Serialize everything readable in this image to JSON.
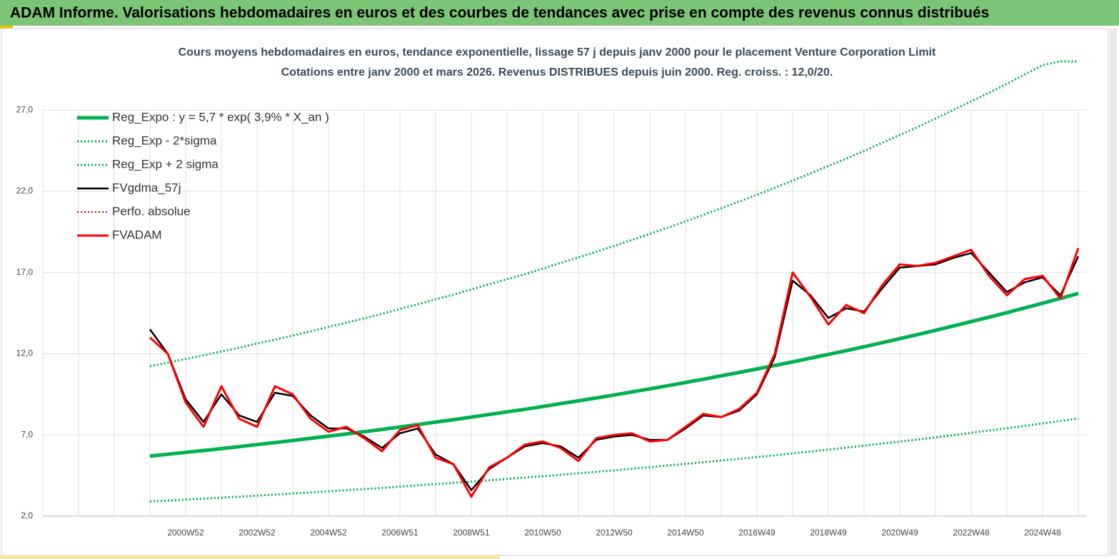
{
  "header": {
    "title": "ADAM Informe. Valorisations hebdomadaires en euros et des courbes de tendances avec prise en compte des revenus connus distribués"
  },
  "chart_data": {
    "type": "line",
    "title": "Cours moyens hebdomadaires en euros, tendance exponentielle, lissage 57 j depuis janv 2000  pour le placement Venture Corporation Limit",
    "subtitle": "Cotations entre janv 2000 et mars 2026. Revenus  DISTRIBUES depuis juin 2000. Reg. croiss. : 12,0/20.",
    "categories": [
      null,
      null,
      null,
      null,
      null,
      null,
      null,
      null,
      "2000W52",
      null,
      null,
      null,
      "2002W52",
      null,
      null,
      null,
      "2004W52",
      null,
      null,
      null,
      "2006W51",
      null,
      null,
      null,
      "2008W51",
      null,
      null,
      null,
      "2010W50",
      null,
      null,
      null,
      "2012W50",
      null,
      null,
      null,
      "2014W50",
      null,
      null,
      null,
      "2016W49",
      null,
      null,
      null,
      "2018W49",
      null,
      null,
      null,
      "2020W49",
      null,
      null,
      null,
      "2022W48",
      null,
      null,
      null,
      "2024W48",
      null,
      null
    ],
    "ylim": [
      2,
      30
    ],
    "yticks": [
      {
        "value": 2,
        "label": "2,0"
      },
      {
        "value": 7,
        "label": "7,0"
      },
      {
        "value": 12,
        "label": "12,0"
      },
      {
        "value": 17,
        "label": "17,0"
      },
      {
        "value": 22,
        "label": "22,0"
      },
      {
        "value": 27,
        "label": "27,0"
      }
    ],
    "grid": true,
    "legend": "upper left",
    "series": [
      {
        "name": "Reg_Expo : y = 5,7 * exp( 3,9% *  X_an )",
        "color": "#00b050",
        "style": "solid",
        "width": 5,
        "values": [
          null,
          null,
          null,
          null,
          null,
          null,
          5.7,
          5.81,
          5.93,
          6.04,
          6.16,
          6.28,
          6.41,
          6.53,
          6.66,
          6.79,
          6.93,
          7.06,
          7.2,
          7.34,
          7.49,
          7.64,
          7.79,
          7.94,
          8.1,
          8.26,
          8.42,
          8.58,
          8.75,
          8.93,
          9.1,
          9.28,
          9.46,
          9.65,
          9.84,
          10.03,
          10.23,
          10.43,
          10.64,
          10.85,
          11.06,
          11.28,
          11.5,
          11.73,
          11.96,
          12.19,
          12.43,
          12.68,
          12.93,
          13.18,
          13.44,
          13.71,
          13.98,
          14.25,
          14.53,
          14.82,
          15.11,
          15.41,
          15.71
        ]
      },
      {
        "name": "Reg_Exp - 2*sigma",
        "color": "#00b050",
        "style": "dotted",
        "width": 3,
        "values": [
          null,
          null,
          null,
          null,
          null,
          null,
          2.91,
          2.96,
          3.02,
          3.08,
          3.14,
          3.2,
          3.27,
          3.33,
          3.4,
          3.46,
          3.53,
          3.6,
          3.67,
          3.74,
          3.82,
          3.9,
          3.97,
          4.05,
          4.13,
          4.21,
          4.29,
          4.38,
          4.46,
          4.55,
          4.64,
          4.73,
          4.82,
          4.92,
          5.02,
          5.12,
          5.22,
          5.32,
          5.43,
          5.53,
          5.64,
          5.75,
          5.87,
          5.98,
          6.1,
          6.22,
          6.34,
          6.47,
          6.59,
          6.72,
          6.85,
          6.99,
          7.13,
          7.27,
          7.41,
          7.56,
          7.71,
          7.86,
          8.01
        ]
      },
      {
        "name": "Reg_Exp + 2 sigma",
        "color": "#00b050",
        "style": "dotted",
        "width": 3,
        "values": [
          null,
          null,
          null,
          null,
          null,
          null,
          11.23,
          11.45,
          11.68,
          11.9,
          12.14,
          12.37,
          12.63,
          12.86,
          13.12,
          13.38,
          13.65,
          13.91,
          14.18,
          14.46,
          14.76,
          15.05,
          15.35,
          15.64,
          15.96,
          16.27,
          16.59,
          16.9,
          17.24,
          17.59,
          17.93,
          18.28,
          18.64,
          19.01,
          19.38,
          19.76,
          20.15,
          20.55,
          20.96,
          21.37,
          21.79,
          22.22,
          22.66,
          23.11,
          23.56,
          24.01,
          24.49,
          24.98,
          25.47,
          25.96,
          26.48,
          27.01,
          27.54,
          28.07,
          28.62,
          29.2,
          29.77,
          30.0,
          30.0
        ]
      },
      {
        "name": "FVgdma_57j",
        "color": "#000000",
        "style": "solid",
        "width": 2.5,
        "values": [
          null,
          null,
          null,
          null,
          null,
          null,
          13.5,
          12.0,
          9.2,
          7.8,
          9.5,
          8.2,
          7.8,
          9.6,
          9.4,
          8.2,
          7.4,
          7.4,
          6.9,
          6.2,
          7.1,
          7.4,
          5.8,
          5.2,
          3.6,
          4.9,
          5.6,
          6.3,
          6.5,
          6.3,
          5.6,
          6.7,
          6.9,
          7.0,
          6.7,
          6.7,
          7.4,
          8.2,
          8.1,
          8.5,
          9.5,
          11.8,
          16.5,
          15.6,
          14.2,
          14.8,
          14.6,
          16.0,
          17.3,
          17.4,
          17.5,
          17.9,
          18.2,
          17.0,
          15.8,
          16.4,
          16.7,
          15.6,
          18.0
        ]
      },
      {
        "name": "Perfo. absolue",
        "color": "#c00000",
        "style": "dotted",
        "width": 2,
        "values": [
          null,
          null,
          null,
          null,
          null,
          null,
          null,
          null,
          null,
          null,
          null,
          null,
          null,
          null,
          null,
          null,
          null,
          null,
          null,
          null,
          null,
          null,
          null,
          null,
          null,
          null,
          null,
          null,
          null,
          null,
          null,
          null,
          null,
          null,
          null,
          null,
          null,
          null,
          null,
          null,
          null,
          null,
          null,
          null,
          null,
          null,
          null,
          null,
          null,
          null,
          null,
          null,
          null,
          null,
          null,
          null,
          null,
          null,
          null
        ]
      },
      {
        "name": "FVADAM",
        "color": "#ff0000",
        "style": "solid",
        "width": 3,
        "values": [
          null,
          null,
          null,
          null,
          null,
          null,
          13.0,
          12.0,
          9.0,
          7.5,
          10.0,
          8.0,
          7.5,
          10.0,
          9.5,
          8.0,
          7.2,
          7.5,
          6.8,
          6.0,
          7.3,
          7.6,
          5.6,
          5.2,
          3.2,
          5.0,
          5.6,
          6.4,
          6.6,
          6.2,
          5.4,
          6.8,
          7.0,
          7.1,
          6.6,
          6.7,
          7.5,
          8.3,
          8.1,
          8.6,
          9.6,
          12.0,
          17.0,
          15.5,
          13.8,
          15.0,
          14.5,
          16.2,
          17.5,
          17.4,
          17.6,
          18.0,
          18.4,
          16.8,
          15.6,
          16.6,
          16.8,
          15.4,
          18.5
        ]
      }
    ]
  }
}
